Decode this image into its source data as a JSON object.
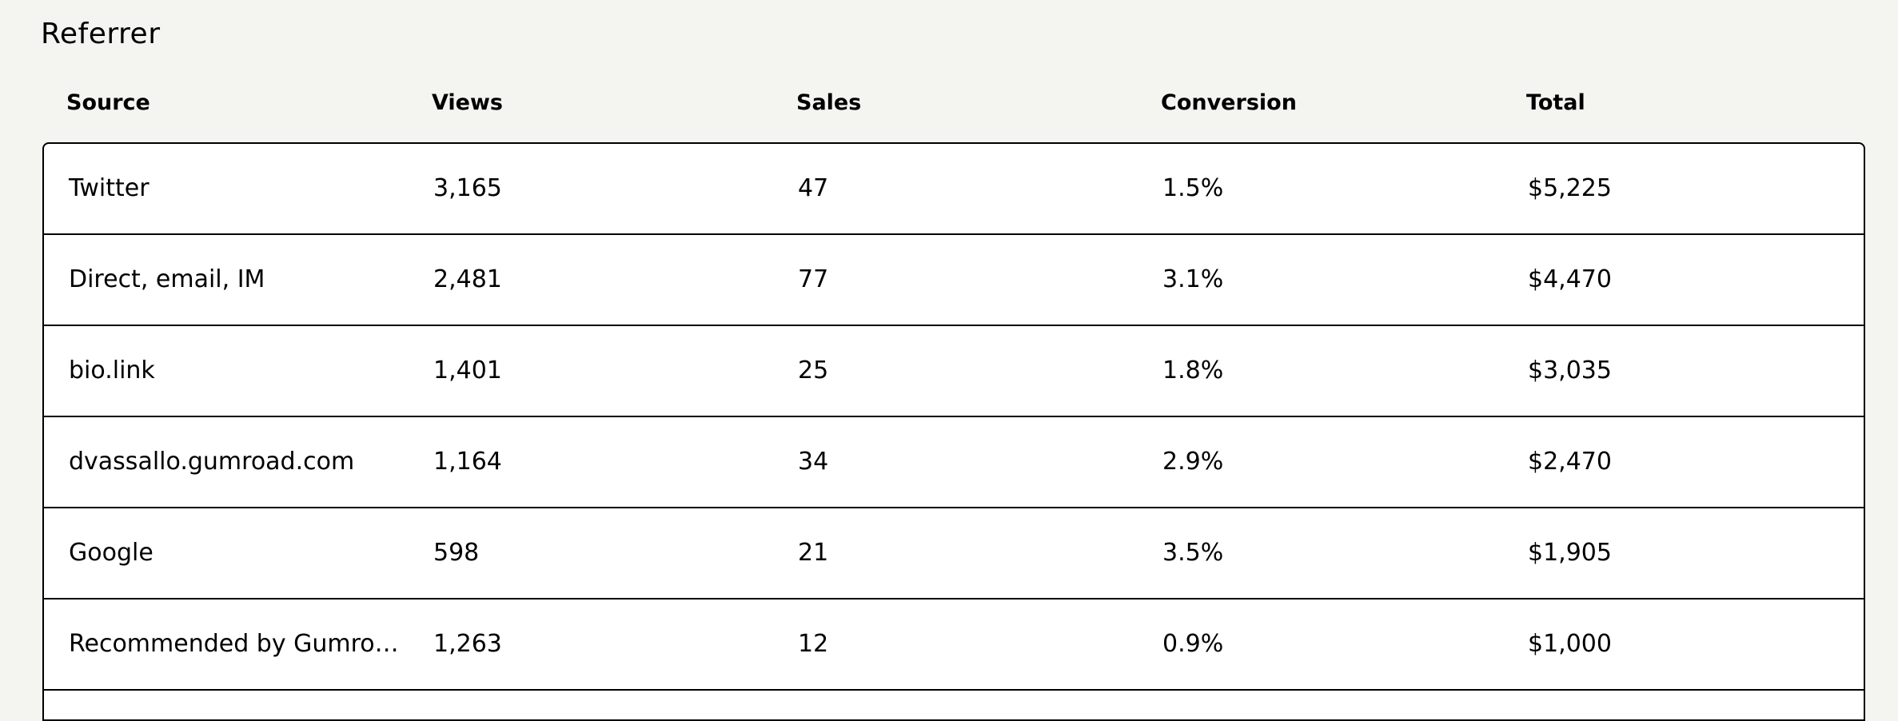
{
  "header": {
    "title": "Referrer"
  },
  "table": {
    "columns": [
      "Source",
      "Views",
      "Sales",
      "Conversion",
      "Total"
    ],
    "rows": [
      [
        "Twitter",
        "3,165",
        "47",
        "1.5%",
        "$5,225"
      ],
      [
        "Direct, email, IM",
        "2,481",
        "77",
        "3.1%",
        "$4,470"
      ],
      [
        "bio.link",
        "1,401",
        "25",
        "1.8%",
        "$3,035"
      ],
      [
        "dvassallo.gumroad.com",
        "1,164",
        "34",
        "2.9%",
        "$2,470"
      ],
      [
        "Google",
        "598",
        "21",
        "3.5%",
        "$1,905"
      ],
      [
        "Recommended by Gumro…",
        "1,263",
        "12",
        "0.9%",
        "$1,000"
      ]
    ]
  }
}
